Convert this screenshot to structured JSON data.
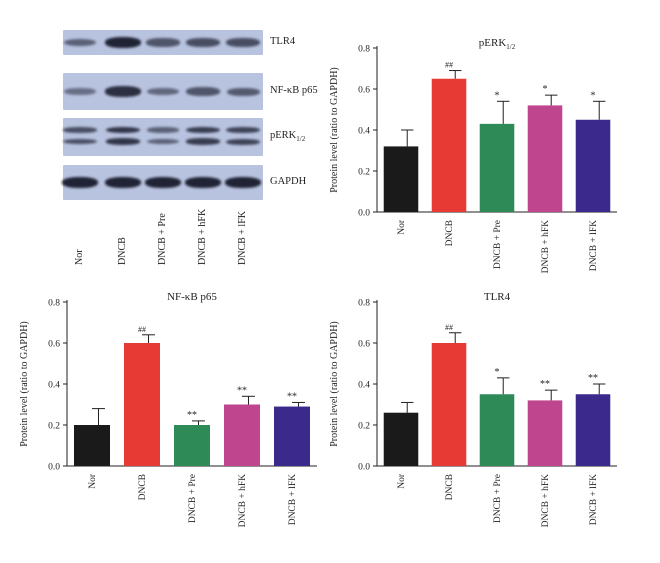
{
  "blot": {
    "strips": [
      {
        "label": "TLR4",
        "intensities": [
          0.45,
          0.95,
          0.55,
          0.6,
          0.6
        ],
        "bands": 1
      },
      {
        "label": "NF-κB p65",
        "intensities": [
          0.35,
          0.85,
          0.4,
          0.55,
          0.5
        ],
        "bands": 1
      },
      {
        "label": "pERK",
        "label_sub": "1/2",
        "intensities": [
          0.6,
          0.8,
          0.45,
          0.75,
          0.7
        ],
        "bands": 2
      },
      {
        "label": "GAPDH",
        "intensities": [
          0.95,
          0.95,
          0.95,
          0.95,
          0.95
        ],
        "bands": 1
      }
    ],
    "lane_labels": [
      "Nor",
      "DNCB",
      "DNCB + Pre",
      "DNCB + hFK",
      "DNCB + lFK"
    ],
    "strip_color": "#b8c3df",
    "band_color": "#1a1d2e"
  },
  "chart_data": [
    {
      "type": "bar",
      "title": "pERK",
      "title_sub": "1/2",
      "ylabel": "Protein level (ratio to GAPDH)",
      "categories": [
        "Nor",
        "DNCB",
        "DNCB + Pre",
        "DNCB + hFK",
        "DNCB + lFK"
      ],
      "values": [
        0.32,
        0.65,
        0.43,
        0.52,
        0.45
      ],
      "errors": [
        0.08,
        0.04,
        0.11,
        0.05,
        0.09
      ],
      "annotations": [
        "",
        "##",
        "*",
        "*",
        "*"
      ],
      "colors": [
        "#1a1a1a",
        "#e83a34",
        "#2e8b57",
        "#c0458f",
        "#3b2a8c"
      ],
      "ylim": [
        0,
        0.8
      ],
      "yticks": [
        "0.0",
        "0.2",
        "0.4",
        "0.6",
        "0.8"
      ]
    },
    {
      "type": "bar",
      "title": "NF-κB p65",
      "title_sub": "",
      "ylabel": "Protein level (ratio to GAPDH)",
      "categories": [
        "Nor",
        "DNCB",
        "DNCB + Pre",
        "DNCB + hFK",
        "DNCB + lFK"
      ],
      "values": [
        0.2,
        0.6,
        0.2,
        0.3,
        0.29
      ],
      "errors": [
        0.08,
        0.04,
        0.02,
        0.04,
        0.02
      ],
      "annotations": [
        "",
        "##",
        "**",
        "**",
        "**"
      ],
      "colors": [
        "#1a1a1a",
        "#e83a34",
        "#2e8b57",
        "#c0458f",
        "#3b2a8c"
      ],
      "ylim": [
        0,
        0.8
      ],
      "yticks": [
        "0.0",
        "0.2",
        "0.4",
        "0.6",
        "0.8"
      ]
    },
    {
      "type": "bar",
      "title": "TLR4",
      "title_sub": "",
      "ylabel": "Protein level (ratio to GAPDH)",
      "categories": [
        "Nor",
        "DNCB",
        "DNCB + Pre",
        "DNCB + hFK",
        "DNCB + lFK"
      ],
      "values": [
        0.26,
        0.6,
        0.35,
        0.32,
        0.35
      ],
      "errors": [
        0.05,
        0.05,
        0.08,
        0.05,
        0.05
      ],
      "annotations": [
        "",
        "##",
        "*",
        "**",
        "**"
      ],
      "colors": [
        "#1a1a1a",
        "#e83a34",
        "#2e8b57",
        "#c0458f",
        "#3b2a8c"
      ],
      "ylim": [
        0,
        0.8
      ],
      "yticks": [
        "0.0",
        "0.2",
        "0.4",
        "0.6",
        "0.8"
      ]
    }
  ]
}
